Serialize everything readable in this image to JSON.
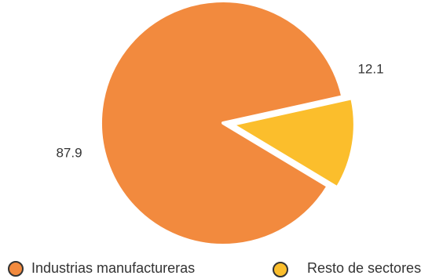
{
  "chart_data": {
    "type": "pie",
    "title": "",
    "slices": [
      {
        "label": "Industrias manufactureras",
        "value": 87.9,
        "value_label": "87.9",
        "color": "#F28A3E",
        "exploded": false
      },
      {
        "label": "Resto de sectores",
        "value": 12.1,
        "value_label": "12.1",
        "color": "#FBBE2C",
        "exploded": true
      }
    ],
    "legend": {
      "position": "bottom",
      "items": [
        "Industrias manufactureras",
        "Resto de sectores"
      ]
    },
    "legend_marker_border": "#333333"
  }
}
